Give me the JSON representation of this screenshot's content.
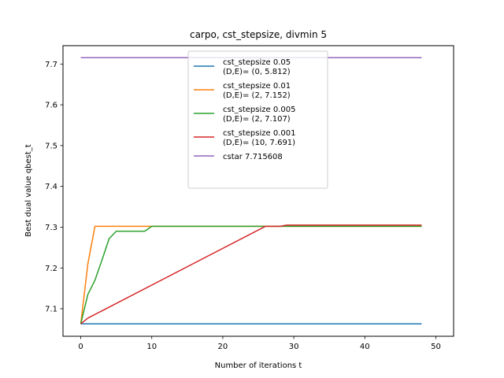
{
  "chart_data": {
    "type": "line",
    "title": "carpo, cst_stepsize, divmin 5",
    "xlabel": "Number of iterations t",
    "ylabel": "Best dual value qbest_t",
    "xlim": [
      -2.5,
      52.5
    ],
    "ylim": [
      7.0325,
      7.745
    ],
    "xticks": [
      0,
      10,
      20,
      30,
      40,
      50
    ],
    "xtick_labels": [
      "0",
      "10",
      "20",
      "30",
      "40",
      "50"
    ],
    "yticks": [
      7.1,
      7.2,
      7.3,
      7.4,
      7.5,
      7.6,
      7.7
    ],
    "ytick_labels": [
      "7.1",
      "7.2",
      "7.3",
      "7.4",
      "7.5",
      "7.6",
      "7.7"
    ],
    "grid": false,
    "legend_position": "top-center",
    "series": [
      {
        "name": "cst_stepsize 0.05\n(D,E)= (0, 5.812)",
        "color": "#1f77b4",
        "x": [
          0,
          48
        ],
        "y": [
          7.063,
          7.063
        ]
      },
      {
        "name": "cst_stepsize 0.01\n(D,E)= (2, 7.152)",
        "color": "#ff7f0e",
        "x": [
          0,
          1,
          2,
          3,
          10,
          48
        ],
        "y": [
          7.063,
          7.21,
          7.302,
          7.302,
          7.302,
          7.302
        ]
      },
      {
        "name": "cst_stepsize 0.005\n(D,E)= (2, 7.107)",
        "color": "#2ca02c",
        "x": [
          0,
          1,
          2,
          3,
          4,
          5,
          6,
          9,
          10,
          11,
          48
        ],
        "y": [
          7.063,
          7.135,
          7.17,
          7.22,
          7.272,
          7.29,
          7.29,
          7.29,
          7.302,
          7.302,
          7.302
        ]
      },
      {
        "name": "cst_stepsize 0.001\n(D,E)= (10, 7.691)",
        "color": "#d62728",
        "x": [
          0,
          1,
          26,
          28,
          29,
          30,
          48
        ],
        "y": [
          7.063,
          7.077,
          7.302,
          7.302,
          7.305,
          7.305,
          7.305
        ]
      },
      {
        "name": "cstar 7.715608",
        "color": "#9467bd",
        "x": [
          0,
          48
        ],
        "y": [
          7.7156,
          7.7156
        ]
      }
    ]
  }
}
